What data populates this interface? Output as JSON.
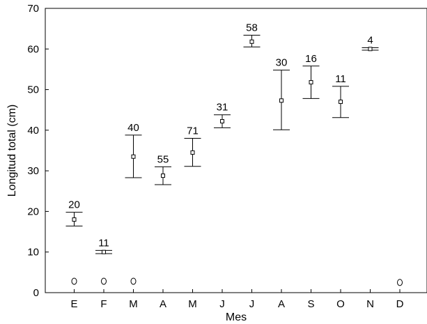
{
  "chart_data": {
    "type": "scatter",
    "title": "",
    "xlabel": "Mes",
    "ylabel": "Longitud total (cm)",
    "ylim": [
      0,
      70
    ],
    "yticks": [
      "0",
      "10",
      "20",
      "30",
      "40",
      "50",
      "60",
      "70"
    ],
    "categories": [
      "E",
      "F",
      "M",
      "A",
      "M",
      "J",
      "J",
      "A",
      "S",
      "O",
      "N",
      "D"
    ],
    "mean": [
      18,
      10,
      33.5,
      28.8,
      34.5,
      42.2,
      61.8,
      47.3,
      51.8,
      47,
      60,
      null
    ],
    "upper": [
      19.8,
      10.4,
      38.8,
      31,
      38,
      43.8,
      63.4,
      54.8,
      55.8,
      50.8,
      60.3,
      null
    ],
    "lower": [
      16.4,
      9.6,
      28.3,
      26.6,
      31.1,
      40.6,
      60.5,
      40.1,
      47.8,
      43.1,
      59.7,
      null
    ],
    "n": [
      "20",
      "11",
      "40",
      "55",
      "71",
      "31",
      "58",
      "30",
      "16",
      "11",
      "4",
      ""
    ],
    "outliers": [
      2.8,
      2.8,
      2.8,
      null,
      null,
      null,
      null,
      null,
      null,
      null,
      null,
      2.5
    ],
    "legend": "none",
    "grid": false
  }
}
